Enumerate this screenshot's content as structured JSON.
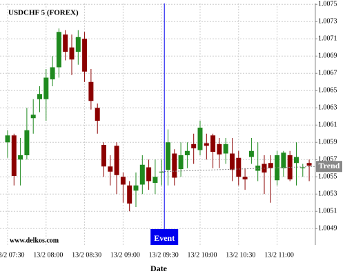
{
  "chart_data": {
    "type": "candlestick",
    "title": "USDCHF 5 (FOREX)",
    "watermark": "www.delkos.com",
    "x_label": "Date",
    "categories": [
      "13/2 07:30",
      null,
      null,
      null,
      null,
      null,
      "13/2 08:00",
      null,
      null,
      null,
      null,
      null,
      "13/2 08:30",
      null,
      null,
      null,
      null,
      null,
      "13/2 09:00",
      null,
      null,
      null,
      null,
      null,
      "13/2 09:30",
      null,
      null,
      null,
      null,
      null,
      "13/2 10:00",
      null,
      null,
      null,
      null,
      null,
      "13/2 10:30",
      null,
      null,
      null,
      null,
      null,
      "13/2 11:00",
      null,
      null,
      null,
      null,
      null
    ],
    "open": [
      1.0059,
      1.00598,
      1.0057,
      1.00575,
      1.00618,
      1.0064,
      1.0064,
      1.00663,
      1.00677,
      1.00715,
      1.007,
      1.00695,
      1.0071,
      1.0066,
      1.0063,
      1.00587,
      1.00562,
      1.00586,
      1.0055,
      1.0054,
      1.00534,
      1.00541,
      1.00561,
      1.00543,
      1.00555,
      1.00558,
      1.00577,
      1.00559,
      1.00575,
      1.00588,
      1.00581,
      1.00589,
      1.00598,
      1.00588,
      1.00577,
      1.00577,
      1.00572,
      1.0055,
      1.00573,
      1.00557,
      1.00565,
      1.00566,
      1.00546,
      1.0056,
      1.00575,
      1.00566,
      1.0056,
      1.00566
    ],
    "high": [
      1.00604,
      1.006,
      1.00595,
      1.0063,
      1.0064,
      1.00655,
      1.00675,
      1.0069,
      1.00722,
      1.0072,
      1.00715,
      1.0072,
      1.00718,
      1.00675,
      1.00635,
      1.0059,
      1.00575,
      1.0059,
      1.00555,
      1.00545,
      1.00555,
      1.00575,
      1.0057,
      1.0057,
      1.0057,
      1.00605,
      1.00582,
      1.0059,
      1.0059,
      1.006,
      1.00615,
      1.006,
      1.006,
      1.00595,
      1.00595,
      1.00595,
      1.0058,
      1.0056,
      1.00595,
      1.0059,
      1.00575,
      1.00575,
      1.0058,
      1.0058,
      1.0058,
      1.0059,
      1.00565,
      1.0057
    ],
    "low": [
      1.00572,
      1.0054,
      1.0054,
      1.0057,
      1.006,
      1.00625,
      1.00615,
      1.00655,
      1.00665,
      1.00685,
      1.00668,
      1.0068,
      1.0066,
      1.00628,
      1.006,
      1.0055,
      1.0054,
      1.0053,
      1.0052,
      1.0051,
      1.00515,
      1.0053,
      1.00535,
      1.0053,
      1.0054,
      1.0054,
      1.0054,
      1.0055,
      1.0056,
      1.00565,
      1.00575,
      1.0057,
      1.0056,
      1.0056,
      1.00565,
      1.00545,
      1.0054,
      1.00535,
      1.00565,
      1.00545,
      1.0053,
      1.0052,
      1.0054,
      1.0055,
      1.00545,
      1.0054,
      1.0055,
      1.00545
    ],
    "close": [
      1.00598,
      1.00551,
      1.00575,
      1.00604,
      1.00622,
      1.00646,
      1.00665,
      1.00677,
      1.00718,
      1.00695,
      1.00686,
      1.00712,
      1.00672,
      1.00638,
      1.00615,
      1.00562,
      1.00556,
      1.00552,
      1.00541,
      1.00519,
      1.0054,
      1.00564,
      1.00545,
      1.0055,
      1.00556,
      1.0059,
      1.00549,
      1.00575,
      1.0058,
      1.00583,
      1.00607,
      1.00586,
      1.00579,
      1.00576,
      1.00588,
      1.00558,
      1.0055,
      1.00547,
      1.0058,
      1.00563,
      1.00555,
      1.0056,
      1.00575,
      1.00578,
      1.00547,
      1.00573,
      1.00561,
      1.00563
    ],
    "up_color": "#1f8a1f",
    "down_color": "#8b0000",
    "ylim": [
      1.00471,
      1.00751
    ],
    "yticks": [
      1.0049,
      1.0051,
      1.0053,
      1.0055,
      1.0057,
      1.0059,
      1.0061,
      1.0063,
      1.0065,
      1.0067,
      1.0069,
      1.0071,
      1.0073,
      1.0075
    ],
    "grid": true,
    "event": {
      "label": "Event",
      "category_index": 24,
      "color": "#0000ee"
    },
    "trend": {
      "label": "Trend",
      "x": [
        24,
        47
      ],
      "values": [
        1.00556,
        1.00562
      ],
      "color": "#888888"
    }
  }
}
